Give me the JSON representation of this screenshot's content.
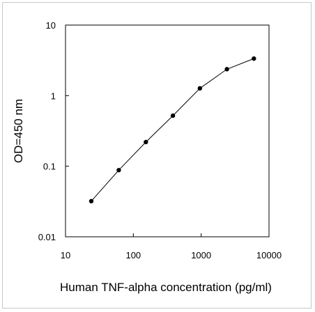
{
  "chart_data": {
    "type": "line",
    "title": "",
    "xlabel": "Human TNF-alpha concentration (pg/ml)",
    "ylabel": "OD=450 nm",
    "x_scale": "log",
    "y_scale": "log",
    "xlim": [
      10,
      10000
    ],
    "ylim": [
      0.01,
      10
    ],
    "x_ticks": [
      "10",
      "100",
      "1000",
      "10000"
    ],
    "y_ticks": [
      "0.01",
      "0.1",
      "1",
      "10"
    ],
    "grid": false,
    "series": [
      {
        "x": [
          24,
          61,
          153,
          383,
          958,
          2395,
          5988
        ],
        "y": [
          0.032,
          0.088,
          0.22,
          0.52,
          1.27,
          2.37,
          3.35
        ]
      }
    ],
    "colors": {
      "line": "#000000",
      "marker": "#000000",
      "axis": "#000000",
      "frame": "#c8c8c8"
    }
  }
}
